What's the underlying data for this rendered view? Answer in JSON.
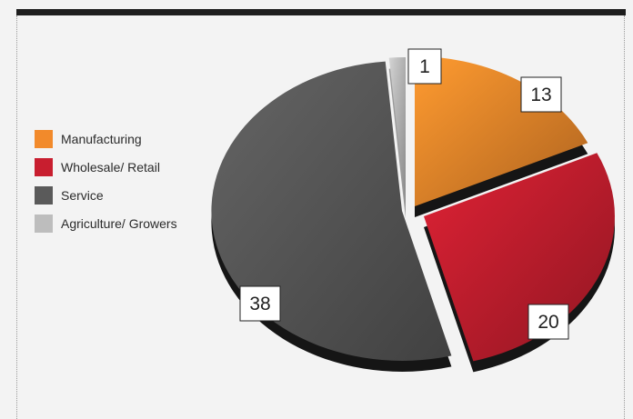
{
  "chart_data": {
    "type": "pie",
    "categories": [
      "Manufacturing",
      "Wholesale/ Retail",
      "Service",
      "Agriculture/ Growers"
    ],
    "values": [
      13,
      20,
      38,
      1
    ],
    "data_labels": [
      "13",
      "20",
      "38",
      "1"
    ],
    "colors": [
      "#f28a2b",
      "#c81e2f",
      "#5a5a5a",
      "#bdbdbd"
    ],
    "legend": "left",
    "title": "",
    "exploded": true,
    "style": "3d"
  }
}
